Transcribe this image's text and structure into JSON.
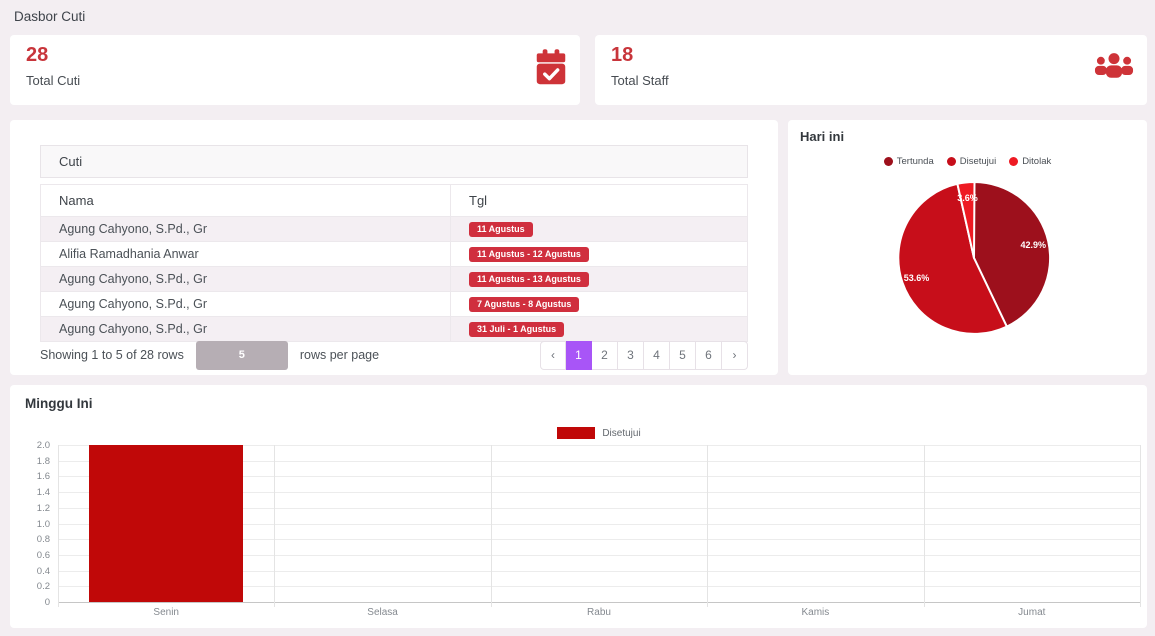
{
  "page": {
    "title": "Dasbor Cuti"
  },
  "stats": [
    {
      "value": "28",
      "label": "Total Cuti",
      "icon": "calendar-check-icon",
      "icon_color": "#ce3338"
    },
    {
      "value": "18",
      "label": "Total Staff",
      "icon": "users-icon",
      "icon_color": "#ce3338"
    }
  ],
  "leave_table": {
    "panel_title": "Cuti",
    "columns": {
      "nama": "Nama",
      "tgl": "Tgl"
    },
    "badge_color": "#d02f3e",
    "rows": [
      {
        "nama": "Agung Cahyono, S.Pd., Gr",
        "tgl": "11 Agustus"
      },
      {
        "nama": "Alifia Ramadhania Anwar",
        "tgl": "11 Agustus - 12 Agustus"
      },
      {
        "nama": "Agung Cahyono, S.Pd., Gr",
        "tgl": "11 Agustus - 13 Agustus"
      },
      {
        "nama": "Agung Cahyono, S.Pd., Gr",
        "tgl": "7 Agustus - 8 Agustus"
      },
      {
        "nama": "Agung Cahyono, S.Pd., Gr",
        "tgl": "31 Juli - 1 Agustus"
      }
    ],
    "footer": {
      "showing_text": "Showing 1 to 5 of 28 rows",
      "page_size": "5",
      "rows_per_page_label": "rows per page",
      "pagination": {
        "prev": "‹",
        "next": "›",
        "pages": [
          "1",
          "2",
          "3",
          "4",
          "5",
          "6"
        ],
        "active_page": "1",
        "active_color": "#a855f7"
      }
    }
  },
  "chart_data": [
    {
      "type": "pie",
      "title": "Hari ini",
      "legend_position": "top",
      "slices": [
        {
          "label": "Tertunda",
          "value": 42.9,
          "display": "42.9%",
          "color": "#9d101c"
        },
        {
          "label": "Disetujui",
          "value": 53.6,
          "display": "53.6%",
          "color": "#c70e1a"
        },
        {
          "label": "Ditolak",
          "value": 3.6,
          "display": "3.6%",
          "color": "#ee1a23"
        }
      ]
    },
    {
      "type": "bar",
      "title": "Minggu Ini",
      "legend_position": "top",
      "categories": [
        "Senin",
        "Selasa",
        "Rabu",
        "Kamis",
        "Jumat"
      ],
      "series": [
        {
          "name": "Disetujui",
          "color": "#c00808",
          "values": [
            2,
            0,
            0,
            0,
            0
          ]
        }
      ],
      "ylim": [
        0,
        2
      ],
      "y_ticks": [
        "2.0",
        "1.8",
        "1.6",
        "1.4",
        "1.2",
        "1.0",
        "0.8",
        "0.6",
        "0.4",
        "0.2",
        "0"
      ],
      "grid": true
    }
  ]
}
